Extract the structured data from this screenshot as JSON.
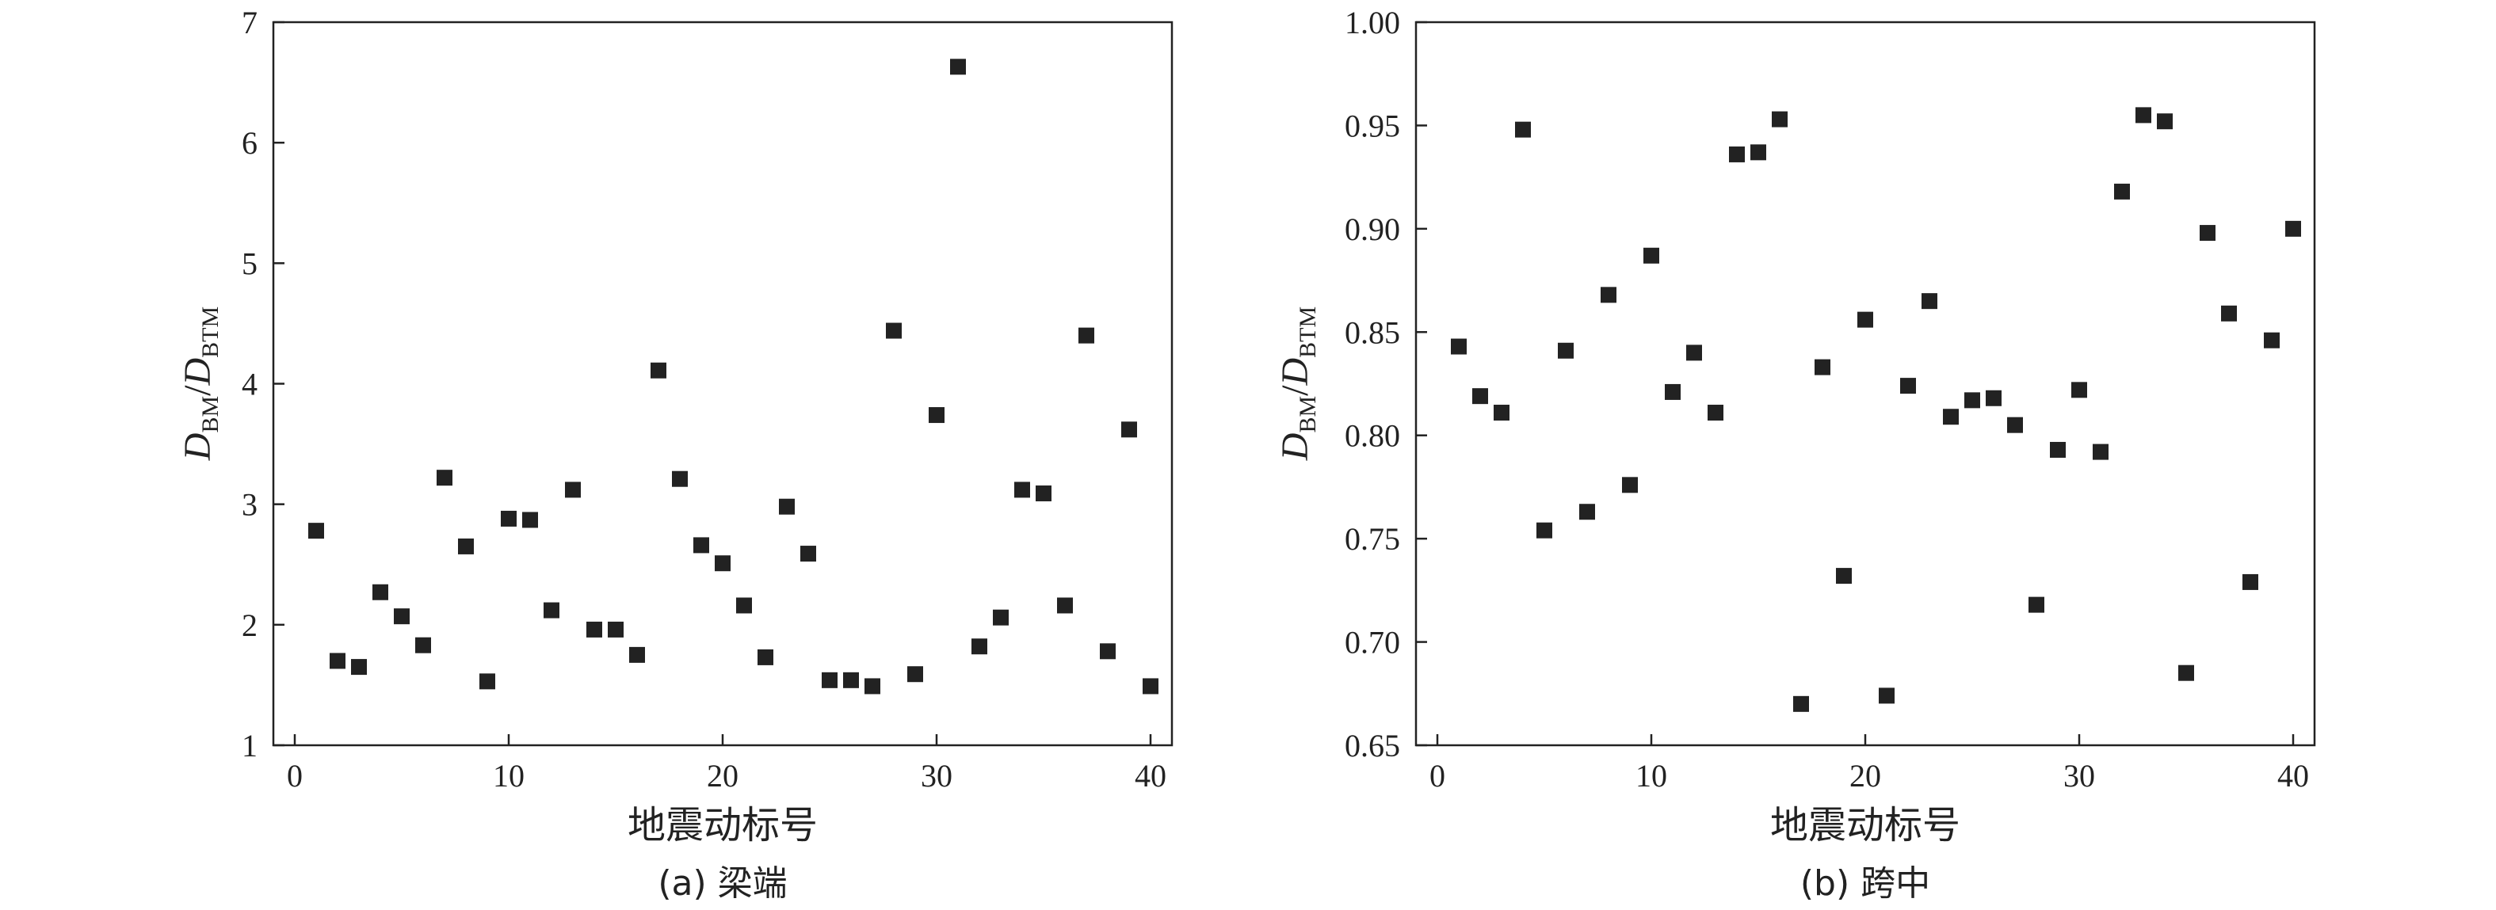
{
  "chart_data": [
    {
      "type": "scatter",
      "caption": "(a) 梁端",
      "xlabel": "地震动标号",
      "ylabel": {
        "main1": "D",
        "sub1": "BM",
        "slash": "/",
        "main2": "D",
        "sub2": "BTM"
      },
      "xlim": [
        -1,
        41
      ],
      "ylim": [
        1,
        7
      ],
      "xticks": [
        0,
        10,
        20,
        30,
        40
      ],
      "xtick_labels": [
        "0",
        "10",
        "20",
        "30",
        "40"
      ],
      "yticks": [
        1,
        2,
        3,
        4,
        5,
        6,
        7
      ],
      "ytick_labels": [
        "1",
        "2",
        "3",
        "4",
        "5",
        "6",
        "7"
      ],
      "grid": false,
      "marker": "square",
      "color": "#222222",
      "x": [
        1,
        2,
        3,
        4,
        5,
        6,
        7,
        8,
        9,
        10,
        11,
        12,
        13,
        14,
        15,
        16,
        17,
        18,
        19,
        20,
        21,
        22,
        23,
        24,
        25,
        26,
        27,
        28,
        29,
        30,
        31,
        32,
        33,
        34,
        35,
        36,
        37,
        38,
        39,
        40
      ],
      "y": [
        2.78,
        1.7,
        1.65,
        2.27,
        2.07,
        1.83,
        3.22,
        2.65,
        1.53,
        2.88,
        2.87,
        2.12,
        3.12,
        1.96,
        1.96,
        1.75,
        4.11,
        3.21,
        2.66,
        2.51,
        2.16,
        1.73,
        2.98,
        2.59,
        1.54,
        1.54,
        1.49,
        4.44,
        1.59,
        3.74,
        6.63,
        1.82,
        2.06,
        3.12,
        3.09,
        2.16,
        4.4,
        1.78,
        3.62,
        1.49
      ]
    },
    {
      "type": "scatter",
      "caption": "(b) 跨中",
      "xlabel": "地震动标号",
      "ylabel": {
        "main1": "D",
        "sub1": "BM",
        "slash": "/",
        "main2": "D",
        "sub2": "BTM"
      },
      "xlim": [
        -1,
        41
      ],
      "ylim": [
        0.65,
        1.0
      ],
      "xticks": [
        0,
        10,
        20,
        30,
        40
      ],
      "xtick_labels": [
        "0",
        "10",
        "20",
        "30",
        "40"
      ],
      "yticks": [
        0.65,
        0.7,
        0.75,
        0.8,
        0.85,
        0.9,
        0.95,
        1.0
      ],
      "ytick_labels": [
        "0.65",
        "0.70",
        "0.75",
        "0.80",
        "0.85",
        "0.90",
        "0.95",
        "1.00"
      ],
      "grid": false,
      "marker": "square",
      "color": "#222222",
      "x": [
        1,
        2,
        3,
        4,
        5,
        6,
        7,
        8,
        9,
        10,
        11,
        12,
        13,
        14,
        15,
        16,
        17,
        18,
        19,
        20,
        21,
        22,
        23,
        24,
        25,
        26,
        27,
        28,
        29,
        30,
        31,
        32,
        33,
        34,
        35,
        36,
        37,
        38,
        39,
        40
      ],
      "y": [
        0.843,
        0.819,
        0.811,
        0.948,
        0.754,
        0.841,
        0.763,
        0.868,
        0.776,
        0.887,
        0.821,
        0.84,
        0.811,
        0.936,
        0.937,
        0.953,
        0.67,
        0.833,
        0.732,
        0.856,
        0.674,
        0.824,
        0.865,
        0.809,
        0.817,
        0.818,
        0.805,
        0.718,
        0.793,
        0.822,
        0.792,
        0.918,
        0.955,
        0.952,
        0.685,
        0.898,
        0.859,
        0.729,
        0.846,
        0.9
      ]
    }
  ]
}
